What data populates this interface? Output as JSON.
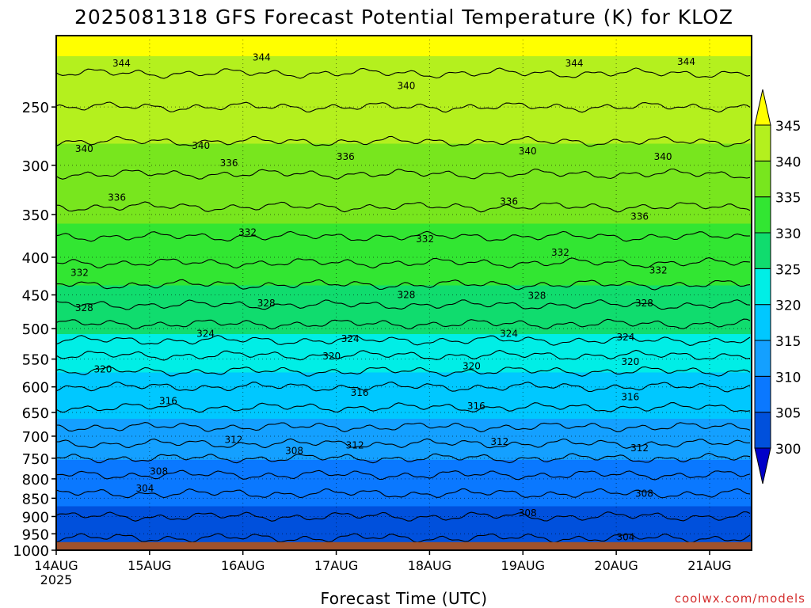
{
  "chart_data": {
    "type": "heatmap",
    "title": "2025081318 GFS Forecast Potential Temperature (K) for KLOZ",
    "xlabel": "Forecast Time (UTC)",
    "ylabel": "",
    "credit": "coolwx.com/models",
    "x_ticks": [
      "14AUG",
      "15AUG",
      "16AUG",
      "17AUG",
      "18AUG",
      "19AUG",
      "20AUG",
      "21AUG"
    ],
    "x_year_label": "2025",
    "x_range_days": [
      0,
      7.45
    ],
    "y_ticks": [
      250,
      300,
      350,
      400,
      450,
      500,
      550,
      600,
      650,
      700,
      750,
      800,
      850,
      900,
      950,
      1000
    ],
    "ylim": [
      200,
      1000
    ],
    "y_scale": "log",
    "y_inverted": true,
    "grid": "dotted",
    "colorbar": {
      "levels": [
        300,
        305,
        310,
        315,
        320,
        325,
        330,
        335,
        340,
        345
      ],
      "colors": [
        "#0a3ca0",
        "#0050dc",
        "#0a78ff",
        "#14a0ff",
        "#00c8ff",
        "#00eee6",
        "#10dc6e",
        "#32e632",
        "#78e61e",
        "#b4f01e",
        "#ffff00"
      ],
      "under_color": "#0000c8",
      "over_color": "#ffff00",
      "placement": "right"
    },
    "isotherm_profile": {
      "pressure_hpa": [
        200,
        250,
        300,
        350,
        400,
        450,
        500,
        550,
        600,
        650,
        700,
        750,
        800,
        850,
        900,
        950,
        975
      ],
      "theta_k": [
        346,
        342,
        338.5,
        335.5,
        332.5,
        329,
        325.5,
        321.5,
        318,
        315.5,
        313,
        310,
        307.5,
        305.5,
        304,
        302.5,
        301.5
      ]
    },
    "contour_levels": [
      302,
      304,
      306,
      308,
      310,
      312,
      314,
      316,
      318,
      320,
      322,
      324,
      326,
      328,
      330,
      332,
      334,
      336,
      338,
      340,
      342,
      344
    ],
    "contour_labels": [
      {
        "value": "344",
        "x_day": 0.7,
        "p": 218
      },
      {
        "value": "344",
        "x_day": 2.2,
        "p": 214
      },
      {
        "value": "344",
        "x_day": 5.55,
        "p": 218
      },
      {
        "value": "344",
        "x_day": 6.75,
        "p": 217
      },
      {
        "value": "340",
        "x_day": 3.75,
        "p": 234
      },
      {
        "value": "340",
        "x_day": 0.3,
        "p": 285
      },
      {
        "value": "340",
        "x_day": 1.55,
        "p": 282
      },
      {
        "value": "340",
        "x_day": 5.05,
        "p": 287
      },
      {
        "value": "340",
        "x_day": 6.5,
        "p": 292
      },
      {
        "value": "336",
        "x_day": 1.85,
        "p": 298
      },
      {
        "value": "336",
        "x_day": 3.1,
        "p": 292
      },
      {
        "value": "336",
        "x_day": 0.65,
        "p": 332
      },
      {
        "value": "336",
        "x_day": 4.85,
        "p": 336
      },
      {
        "value": "336",
        "x_day": 6.25,
        "p": 352
      },
      {
        "value": "332",
        "x_day": 2.05,
        "p": 370
      },
      {
        "value": "332",
        "x_day": 3.95,
        "p": 378
      },
      {
        "value": "332",
        "x_day": 5.4,
        "p": 394
      },
      {
        "value": "332",
        "x_day": 0.25,
        "p": 420
      },
      {
        "value": "332",
        "x_day": 6.45,
        "p": 417
      },
      {
        "value": "328",
        "x_day": 0.3,
        "p": 469
      },
      {
        "value": "328",
        "x_day": 2.25,
        "p": 462
      },
      {
        "value": "328",
        "x_day": 3.75,
        "p": 450
      },
      {
        "value": "328",
        "x_day": 5.15,
        "p": 451
      },
      {
        "value": "328",
        "x_day": 6.3,
        "p": 462
      },
      {
        "value": "324",
        "x_day": 1.6,
        "p": 508
      },
      {
        "value": "324",
        "x_day": 3.15,
        "p": 516
      },
      {
        "value": "324",
        "x_day": 4.85,
        "p": 508
      },
      {
        "value": "324",
        "x_day": 6.1,
        "p": 514
      },
      {
        "value": "320",
        "x_day": 0.5,
        "p": 568
      },
      {
        "value": "320",
        "x_day": 2.95,
        "p": 545
      },
      {
        "value": "320",
        "x_day": 4.45,
        "p": 562
      },
      {
        "value": "320",
        "x_day": 6.15,
        "p": 555
      },
      {
        "value": "316",
        "x_day": 1.2,
        "p": 627
      },
      {
        "value": "316",
        "x_day": 3.25,
        "p": 611
      },
      {
        "value": "316",
        "x_day": 4.5,
        "p": 637
      },
      {
        "value": "316",
        "x_day": 6.15,
        "p": 619
      },
      {
        "value": "312",
        "x_day": 1.9,
        "p": 708
      },
      {
        "value": "312",
        "x_day": 3.2,
        "p": 720
      },
      {
        "value": "312",
        "x_day": 4.75,
        "p": 712
      },
      {
        "value": "312",
        "x_day": 6.25,
        "p": 727
      },
      {
        "value": "308",
        "x_day": 2.55,
        "p": 733
      },
      {
        "value": "308",
        "x_day": 1.1,
        "p": 782
      },
      {
        "value": "308",
        "x_day": 5.05,
        "p": 890
      },
      {
        "value": "308",
        "x_day": 6.3,
        "p": 838
      },
      {
        "value": "304",
        "x_day": 0.95,
        "p": 824
      },
      {
        "value": "304",
        "x_day": 6.1,
        "p": 960
      }
    ],
    "surface": {
      "p_start": 975,
      "color": "#a0522d"
    }
  }
}
